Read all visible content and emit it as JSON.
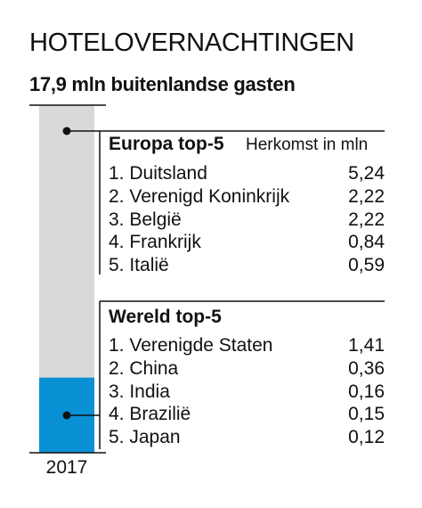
{
  "title": "HOTELOVERNACHTINGEN",
  "subtitle": "17,9 mln buitenlandse gasten",
  "colors": {
    "bar_total": "#d9d9d9",
    "bar_highlight": "#0a90d4",
    "text": "#111111",
    "line": "#111111"
  },
  "chart_data": {
    "type": "bar",
    "categories": [
      "2017"
    ],
    "series": [
      {
        "name": "",
        "values": [
          17.9
        ]
      },
      {
        "name": "",
        "values": [
          3.87
        ]
      }
    ],
    "annotations": [
      {
        "heading": "Europa top-5",
        "unit": "Herkomst in mln",
        "rows": [
          {
            "label": "1. Duitsland",
            "value": "5,24"
          },
          {
            "label": "2. Verenigd Koninkrijk",
            "value": "2,22"
          },
          {
            "label": "3. België",
            "value": "2,22"
          },
          {
            "label": "4. Frankrijk",
            "value": "0,84"
          },
          {
            "label": "5. Italië",
            "value": "0,59"
          }
        ]
      },
      {
        "heading": "Wereld top-5",
        "unit": "",
        "rows": [
          {
            "label": "1. Verenigde Staten",
            "value": "1,41"
          },
          {
            "label": "2. China",
            "value": "0,36"
          },
          {
            "label": "3. India",
            "value": "0,16"
          },
          {
            "label": "4. Brazilië",
            "value": "0,15"
          },
          {
            "label": "5. Japan",
            "value": "0,12"
          }
        ]
      }
    ]
  }
}
